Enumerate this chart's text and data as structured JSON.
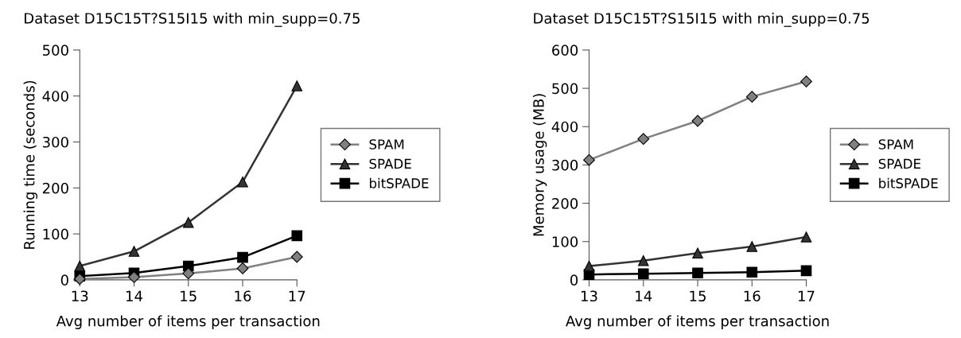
{
  "chart_data": [
    {
      "type": "line",
      "title": "Dataset D15C15T?S15I15 with min_supp=0.75",
      "xlabel": "Avg number of items per transaction",
      "ylabel": "Running time (seconds)",
      "x": [
        13,
        14,
        15,
        16,
        17
      ],
      "xlim": [
        13,
        17
      ],
      "xticks": [
        13,
        14,
        15,
        16,
        17
      ],
      "ylim": [
        0,
        500
      ],
      "yticks": [
        0,
        100,
        200,
        300,
        400,
        500
      ],
      "grid": false,
      "legend": "right",
      "series": [
        {
          "name": "SPAM",
          "color": "#808080",
          "marker": "diamond",
          "values": [
            2,
            6,
            14,
            25,
            50
          ]
        },
        {
          "name": "SPADE",
          "color": "#333333",
          "marker": "triangle",
          "values": [
            30,
            62,
            125,
            213,
            422
          ]
        },
        {
          "name": "bitSPADE",
          "color": "#000000",
          "marker": "square",
          "values": [
            8,
            15,
            30,
            49,
            96
          ]
        }
      ]
    },
    {
      "type": "line",
      "title": "Dataset D15C15T?S15I15 with min_supp=0.75",
      "xlabel": "Avg number of items per transaction",
      "ylabel": "Memory usage (MB)",
      "x": [
        13,
        14,
        15,
        16,
        17
      ],
      "xlim": [
        13,
        17
      ],
      "xticks": [
        13,
        14,
        15,
        16,
        17
      ],
      "ylim": [
        0,
        600
      ],
      "yticks": [
        0,
        100,
        200,
        300,
        400,
        500,
        600
      ],
      "grid": false,
      "legend": "right",
      "series": [
        {
          "name": "SPAM",
          "color": "#808080",
          "marker": "diamond",
          "values": [
            313,
            368,
            415,
            478,
            518
          ]
        },
        {
          "name": "SPADE",
          "color": "#333333",
          "marker": "triangle",
          "values": [
            36,
            50,
            70,
            87,
            112
          ]
        },
        {
          "name": "bitSPADE",
          "color": "#000000",
          "marker": "square",
          "values": [
            14,
            16,
            18,
            20,
            24
          ]
        }
      ]
    }
  ]
}
